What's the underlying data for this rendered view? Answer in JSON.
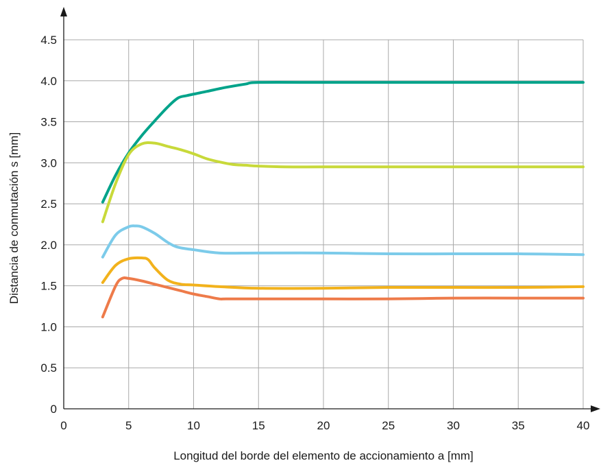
{
  "chart_data": {
    "type": "line",
    "title": "",
    "xlabel": "Longitud del borde del elemento de accionamiento a [mm]",
    "ylabel": "Distancia de conmutación s [mm]",
    "xlim": [
      0,
      40
    ],
    "ylim": [
      0,
      4.5
    ],
    "x_ticks": [
      "0",
      "5",
      "10",
      "15",
      "20",
      "25",
      "30",
      "35",
      "40"
    ],
    "y_ticks": [
      "0",
      "0.5",
      "1.0",
      "1.5",
      "2.0",
      "2.5",
      "3.0",
      "3.5",
      "4.0",
      "4.5"
    ],
    "grid": true,
    "legend": "none",
    "series": [
      {
        "color": "#00a38a",
        "x": [
          3,
          4,
          5,
          6,
          7,
          8,
          8.8,
          9.5,
          11,
          12.5,
          14,
          15,
          20,
          25,
          30,
          35,
          40
        ],
        "y": [
          2.52,
          2.85,
          3.12,
          3.33,
          3.51,
          3.68,
          3.79,
          3.82,
          3.87,
          3.92,
          3.96,
          3.98,
          3.98,
          3.98,
          3.98,
          3.98,
          3.98
        ]
      },
      {
        "color": "#c8d93a",
        "x": [
          3,
          4,
          5,
          6,
          7,
          8,
          9,
          10,
          11,
          12,
          13,
          14,
          15,
          17,
          20,
          25,
          30,
          35,
          40
        ],
        "y": [
          2.28,
          2.75,
          3.1,
          3.23,
          3.24,
          3.2,
          3.16,
          3.11,
          3.05,
          3.01,
          2.98,
          2.97,
          2.96,
          2.95,
          2.95,
          2.95,
          2.95,
          2.95,
          2.95
        ]
      },
      {
        "color": "#7ccbea",
        "x": [
          3,
          4,
          5,
          5.5,
          6,
          7,
          8,
          8.8,
          10,
          12,
          15,
          20,
          25,
          30,
          35,
          40
        ],
        "y": [
          1.85,
          2.12,
          2.22,
          2.23,
          2.22,
          2.14,
          2.03,
          1.97,
          1.94,
          1.9,
          1.9,
          1.9,
          1.89,
          1.89,
          1.89,
          1.88
        ]
      },
      {
        "color": "#f2b21c",
        "x": [
          3,
          4,
          5,
          6,
          6.5,
          7,
          8,
          9,
          10,
          12,
          15,
          20,
          25,
          30,
          35,
          40
        ],
        "y": [
          1.54,
          1.75,
          1.83,
          1.84,
          1.82,
          1.72,
          1.57,
          1.52,
          1.51,
          1.49,
          1.47,
          1.47,
          1.48,
          1.48,
          1.48,
          1.49
        ]
      },
      {
        "color": "#ee7b4a",
        "x": [
          3,
          4,
          4.5,
          5,
          6,
          7,
          8,
          9,
          10,
          11,
          12,
          12.5,
          15,
          20,
          25,
          30,
          35,
          40
        ],
        "y": [
          1.12,
          1.5,
          1.59,
          1.59,
          1.56,
          1.52,
          1.48,
          1.44,
          1.4,
          1.37,
          1.34,
          1.34,
          1.34,
          1.34,
          1.34,
          1.35,
          1.35,
          1.35
        ]
      }
    ]
  }
}
